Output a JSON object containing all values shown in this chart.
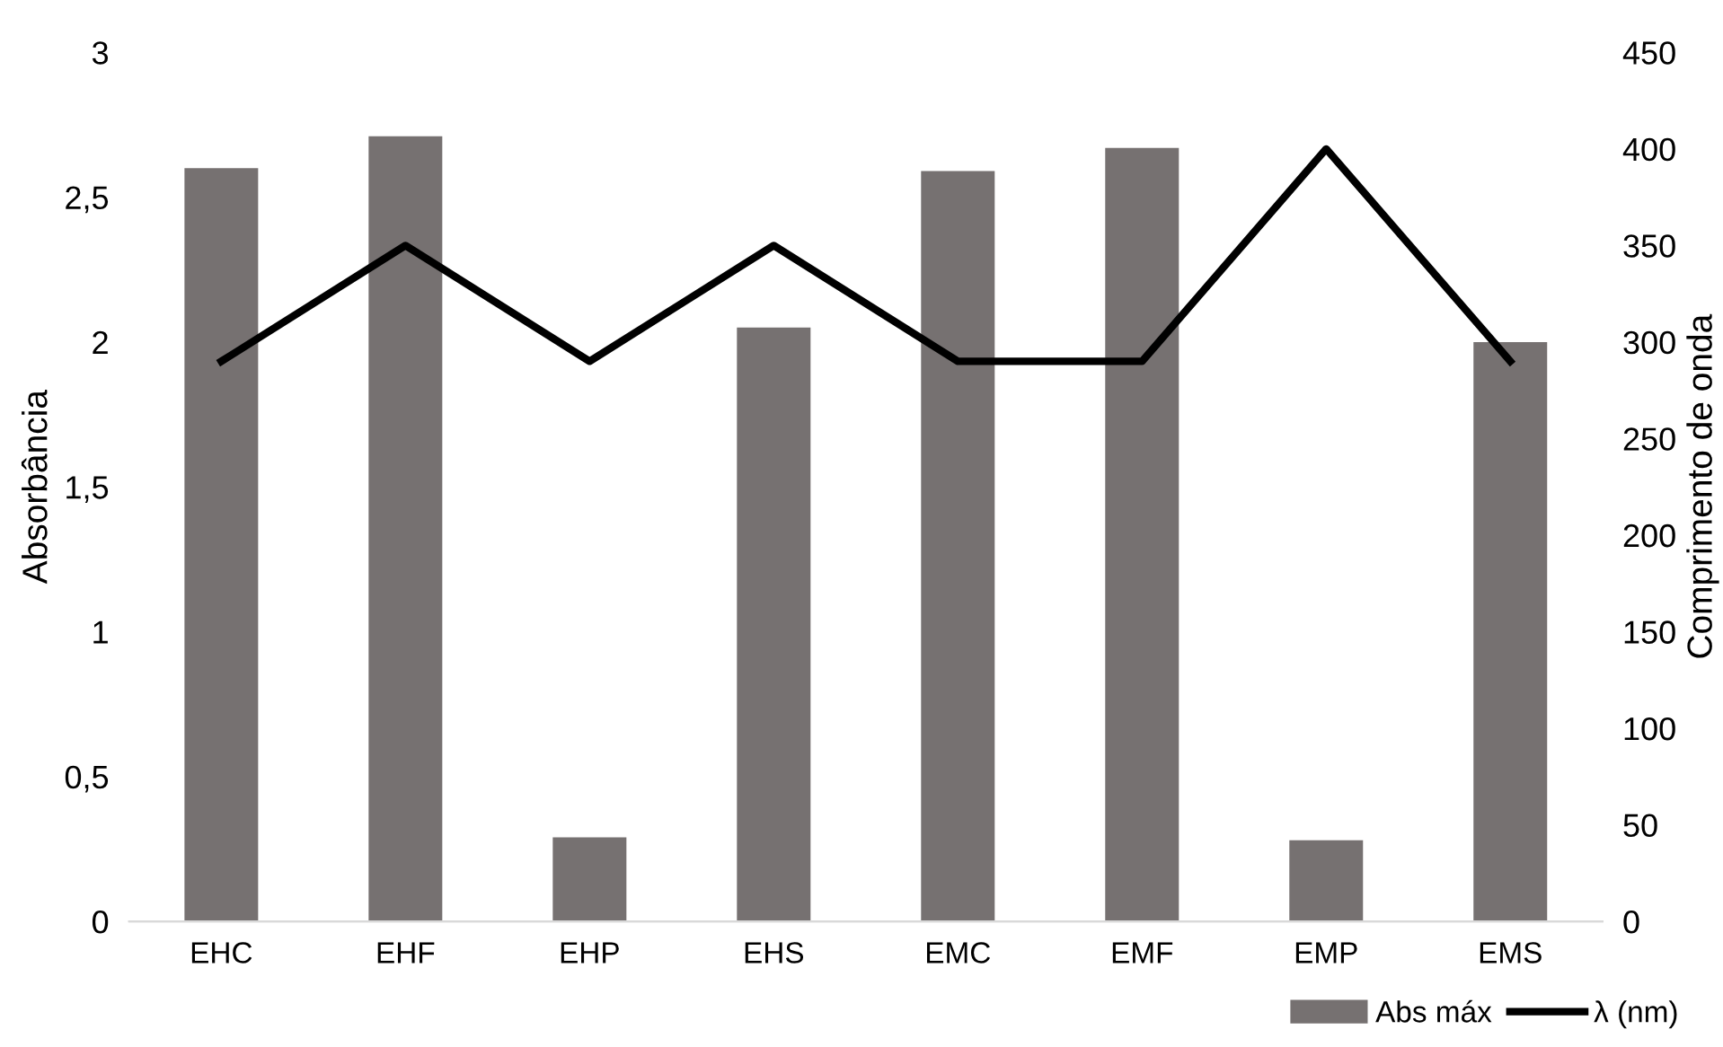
{
  "chart_data": {
    "type": "bar",
    "categories": [
      "EHC",
      "EHF",
      "EHP",
      "EHS",
      "EMC",
      "EMF",
      "EMP",
      "EMS"
    ],
    "series": [
      {
        "name": "Abs máx",
        "color": "#767171",
        "values": [
          2.6,
          2.71,
          0.29,
          2.05,
          2.59,
          2.67,
          0.28,
          2.0
        ]
      },
      {
        "name": "λ (nm)",
        "type": "line",
        "axis": "y2",
        "color": "#000000",
        "values": [
          290,
          350,
          290,
          350,
          290,
          290,
          400,
          290
        ]
      }
    ],
    "ylabel": "Absorbância",
    "y2label": "Comprimento de onda",
    "ylim": [
      0,
      3
    ],
    "yticks": [
      0,
      {
        "value": 0.5,
        "label": "0,5"
      },
      1,
      {
        "value": 1.5,
        "label": "1,5"
      },
      2,
      {
        "value": 2.5,
        "label": "2,5"
      },
      3
    ],
    "y2lim": [
      0,
      450
    ],
    "y2ticks": [
      0,
      50,
      100,
      150,
      200,
      250,
      300,
      350,
      400,
      450
    ],
    "grid": false,
    "legend": "bottom right",
    "marker": "none",
    "line_style": "solid"
  }
}
